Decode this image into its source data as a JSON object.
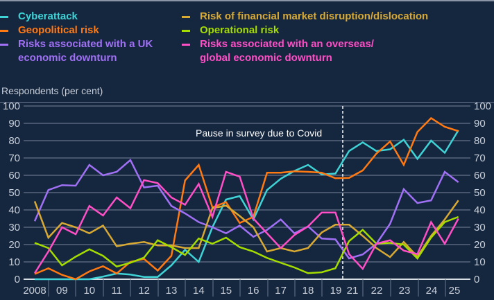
{
  "chart_data": {
    "type": "line",
    "ylabel": "Respondents (per cent)",
    "ylim": [
      0,
      100
    ],
    "y_ticks": [
      0,
      10,
      20,
      30,
      40,
      50,
      60,
      70,
      80,
      90,
      100
    ],
    "x_tick_labels": [
      "2008",
      "09",
      "10",
      "11",
      "12",
      "13",
      "14",
      "15",
      "16",
      "17",
      "18",
      "19",
      "21",
      "22",
      "23",
      "24",
      "25"
    ],
    "grid": true,
    "legend_position": "top",
    "annotation": "Pause in survey due to Covid",
    "series": [
      {
        "name": "Cyberattack",
        "color": "#3fd3d6",
        "values": [
          0,
          0,
          0,
          0,
          0,
          1.5,
          3.3,
          2.7,
          1.3,
          1.3,
          8,
          17,
          10,
          30,
          46,
          48,
          34.5,
          51.5,
          58,
          62.5,
          66,
          60.5,
          61,
          74,
          79,
          74,
          75,
          80.5,
          69.5,
          80,
          73,
          86
        ]
      },
      {
        "name": "Geopolitical risk",
        "color": "#ff7a12",
        "values": [
          3,
          6.3,
          2.5,
          0,
          4.5,
          7.5,
          3.3,
          10,
          11.7,
          5,
          13.5,
          57,
          66,
          41.5,
          44.5,
          32.5,
          36,
          61.5,
          61.5,
          62.3,
          62,
          61.5,
          58.3,
          58.5,
          62.8,
          72.5,
          79.5,
          66,
          85,
          93,
          88,
          85.5
        ]
      },
      {
        "name": "Risks associated with a UK economic downturn",
        "color": "#a070f5",
        "values": [
          33.5,
          51.5,
          54.3,
          54,
          66,
          60,
          62,
          68.8,
          53,
          54,
          42.3,
          38,
          33,
          30,
          26.5,
          31,
          24.5,
          28.5,
          34.5,
          26.5,
          30.5,
          23.5,
          23,
          12,
          14.3,
          20.5,
          32,
          52,
          44,
          45.5,
          62,
          56
        ]
      },
      {
        "name": "Risk of financial market disruption/dislocation",
        "color": "#d8a933",
        "values": [
          45,
          24,
          32.5,
          30,
          26.5,
          31,
          19,
          20.5,
          21.5,
          19.5,
          19.5,
          18,
          18,
          41,
          42.5,
          36.5,
          30,
          16,
          18,
          16,
          18,
          27,
          31.5,
          31.5,
          25,
          18,
          12.8,
          21.5,
          13,
          25,
          34.5,
          45.5
        ]
      },
      {
        "name": "Operational risk",
        "color": "#a6dd00",
        "values": [
          21,
          18,
          8,
          13,
          17.3,
          13.5,
          7.3,
          9.5,
          12.5,
          22.5,
          18.5,
          14,
          23.5,
          20.5,
          24,
          18.5,
          16,
          12.3,
          9.5,
          6.8,
          3.5,
          4,
          6.3,
          22,
          28.5,
          20.5,
          21,
          20,
          12,
          24,
          33,
          36
        ]
      },
      {
        "name": "Risks associated with an overseas/ global economic downturn",
        "color": "#ff4fc6",
        "values": [
          3.5,
          16,
          30,
          26,
          42.3,
          36.8,
          47.2,
          41,
          57.2,
          55.5,
          47.2,
          43,
          55,
          36,
          62,
          59.2,
          35,
          26.5,
          18,
          25.5,
          30.5,
          38.5,
          38.5,
          14.5,
          6,
          20.5,
          22.5,
          16.5,
          14.5,
          33,
          20.5,
          35
        ]
      }
    ]
  },
  "legend": {
    "items": [
      {
        "label": "Cyberattack"
      },
      {
        "label": "Geopolitical risk"
      },
      {
        "label_line1": "Risks associated with a UK",
        "label_line2": "economic downturn"
      },
      {
        "label": "Risk of financial market disruption/dislocation"
      },
      {
        "label": "Operational risk"
      },
      {
        "label_line1": "Risks associated with an overseas/",
        "label_line2": "global economic downturn"
      }
    ]
  }
}
